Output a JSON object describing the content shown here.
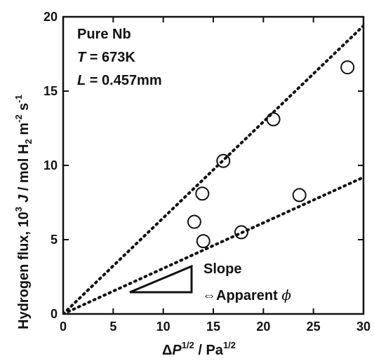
{
  "chart_data": {
    "type": "scatter",
    "xlabel": {
      "pre": "Δ",
      "var": "P",
      "sup": "1/2",
      "mid": " / Pa",
      "sup2": "1/2"
    },
    "ylabel": {
      "pre": "Hydrogen flux, 10",
      "sup1": "3",
      "var": "J",
      "mid": " / mol H",
      "sub": "2",
      "m": " m",
      "sup2": "-2",
      "s": " s",
      "sup3": "-1"
    },
    "xlim": [
      0,
      30
    ],
    "ylim": [
      0,
      20
    ],
    "xticks": [
      0,
      5,
      10,
      15,
      20,
      25,
      30
    ],
    "yticks": [
      0,
      5,
      10,
      15,
      20
    ],
    "grid": false,
    "points": [
      {
        "x": 13.1,
        "y": 6.2
      },
      {
        "x": 14.0,
        "y": 4.9
      },
      {
        "x": 13.9,
        "y": 8.1
      },
      {
        "x": 16.0,
        "y": 10.3
      },
      {
        "x": 17.8,
        "y": 5.5
      },
      {
        "x": 21.0,
        "y": 13.1
      },
      {
        "x": 23.6,
        "y": 8.0
      },
      {
        "x": 28.4,
        "y": 16.6
      }
    ],
    "fit_lines": [
      {
        "x": [
          0,
          30
        ],
        "y": [
          0,
          19.4
        ]
      },
      {
        "x": [
          0,
          30
        ],
        "y": [
          0,
          9.2
        ]
      }
    ],
    "annotation": {
      "line1": "Pure Nb",
      "line2_var": "T",
      "line2_rest": " = 673K",
      "line3_var": "L",
      "line3_rest": " = 0.457mm"
    },
    "slope_note": {
      "line1": "Slope",
      "line2": "⇔Apparent ",
      "phi": "ϕ"
    }
  }
}
